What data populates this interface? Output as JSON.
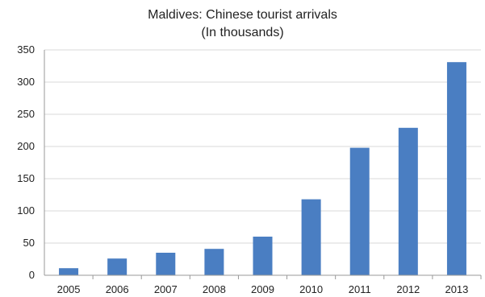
{
  "chart_data": {
    "type": "bar",
    "title": "Maldives: Chinese tourist arrivals",
    "subtitle": "(In thousands)",
    "categories": [
      "2005",
      "2006",
      "2007",
      "2008",
      "2009",
      "2010",
      "2011",
      "2012",
      "2013"
    ],
    "values": [
      11,
      26,
      35,
      41,
      60,
      118,
      198,
      229,
      331
    ],
    "ylim": [
      0,
      350
    ],
    "yticks": [
      0,
      50,
      100,
      150,
      200,
      250,
      300,
      350
    ],
    "xlabel": "",
    "ylabel": "",
    "grid": true,
    "bar_color": "#4a7ec2",
    "grid_color": "#d9d9d9",
    "axis_color": "#999999"
  }
}
